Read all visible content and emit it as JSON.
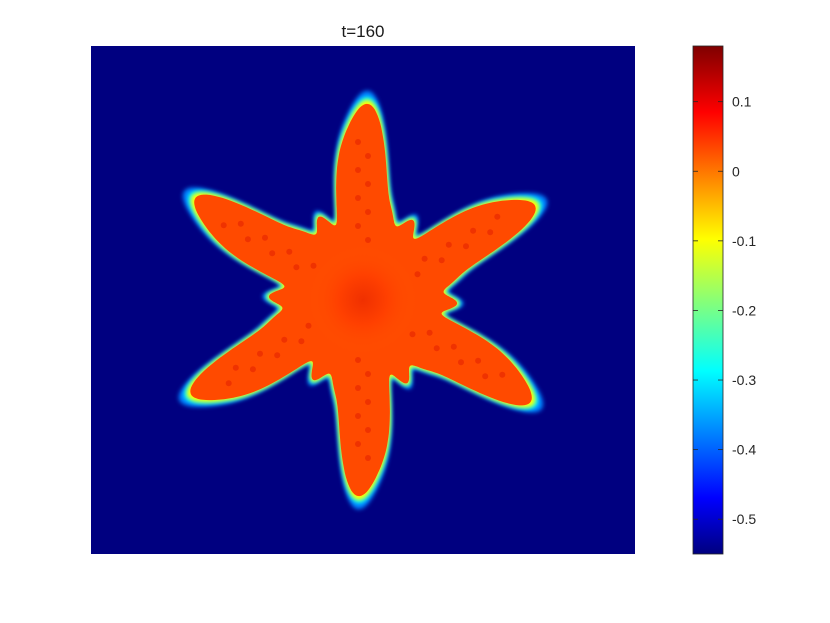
{
  "chart_data": {
    "type": "heatmap",
    "title": "t=160",
    "xlabel": "",
    "ylabel": "",
    "colormap": "jet",
    "clim": [
      -0.55,
      0.18
    ],
    "colorbar": {
      "ticks": [
        0.1,
        0,
        -0.1,
        -0.2,
        -0.3,
        -0.4,
        -0.5
      ],
      "tick_labels": [
        "0.1",
        "0",
        "-0.1",
        "-0.2",
        "-0.3",
        "-0.4",
        "-0.5"
      ]
    },
    "field": {
      "background_value": -0.55,
      "crystal_value": 0.05,
      "shape": "six-armed dendritic snowflake",
      "arms": 6
    }
  },
  "colors": {
    "background": "#000080",
    "crystal": "#ff4a00",
    "edge": "#00ffff"
  }
}
